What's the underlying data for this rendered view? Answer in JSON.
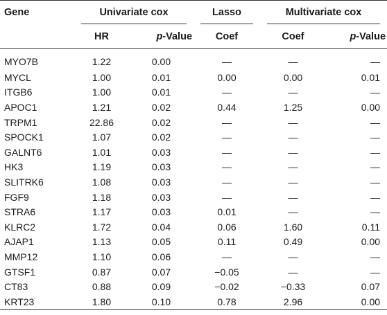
{
  "header": {
    "gene": "Gene",
    "univariate": "Univariate cox",
    "lasso": "Lasso",
    "multivariate": "Multivariate cox",
    "hr": "HR",
    "p_prefix": "p",
    "p_suffix": "-Value",
    "coef": "Coef"
  },
  "rows": [
    {
      "gene": "MYO7B",
      "hr": "1.22",
      "p1": "0.00",
      "lasso": "—",
      "coef": "—",
      "p2": "—"
    },
    {
      "gene": "MYCL",
      "hr": "1.00",
      "p1": "0.01",
      "lasso": "0.00",
      "coef": "0.00",
      "p2": "0.01"
    },
    {
      "gene": "ITGB6",
      "hr": "1.00",
      "p1": "0.01",
      "lasso": "—",
      "coef": "—",
      "p2": "—"
    },
    {
      "gene": "APOC1",
      "hr": "1.21",
      "p1": "0.02",
      "lasso": "0.44",
      "coef": "1.25",
      "p2": "0.00"
    },
    {
      "gene": "TRPM1",
      "hr": "22.86",
      "p1": "0.02",
      "lasso": "—",
      "coef": "—",
      "p2": "—"
    },
    {
      "gene": "SPOCK1",
      "hr": "1.07",
      "p1": "0.02",
      "lasso": "—",
      "coef": "—",
      "p2": "—"
    },
    {
      "gene": "GALNT6",
      "hr": "1.01",
      "p1": "0.03",
      "lasso": "—",
      "coef": "—",
      "p2": "—"
    },
    {
      "gene": "HK3",
      "hr": "1.19",
      "p1": "0.03",
      "lasso": "—",
      "coef": "—",
      "p2": "—"
    },
    {
      "gene": "SLITRK6",
      "hr": "1.08",
      "p1": "0.03",
      "lasso": "—",
      "coef": "—",
      "p2": "—"
    },
    {
      "gene": "FGF9",
      "hr": "1.18",
      "p1": "0.03",
      "lasso": "—",
      "coef": "—",
      "p2": "—"
    },
    {
      "gene": "STRA6",
      "hr": "1.17",
      "p1": "0.03",
      "lasso": "0.01",
      "coef": "—",
      "p2": "—"
    },
    {
      "gene": "KLRC2",
      "hr": "1.72",
      "p1": "0.04",
      "lasso": "0.06",
      "coef": "1.60",
      "p2": "0.11"
    },
    {
      "gene": "AJAP1",
      "hr": "1.13",
      "p1": "0.05",
      "lasso": "0.11",
      "coef": "0.49",
      "p2": "0.00"
    },
    {
      "gene": "MMP12",
      "hr": "1.10",
      "p1": "0.06",
      "lasso": "—",
      "coef": "—",
      "p2": "—"
    },
    {
      "gene": "GTSF1",
      "hr": "0.87",
      "p1": "0.07",
      "lasso": "−0.05",
      "coef": "—",
      "p2": "—"
    },
    {
      "gene": "CT83",
      "hr": "0.88",
      "p1": "0.09",
      "lasso": "−0.02",
      "coef": "−0.33",
      "p2": "0.07"
    },
    {
      "gene": "KRT23",
      "hr": "1.80",
      "p1": "0.10",
      "lasso": "0.78",
      "coef": "2.96",
      "p2": "0.00"
    }
  ]
}
